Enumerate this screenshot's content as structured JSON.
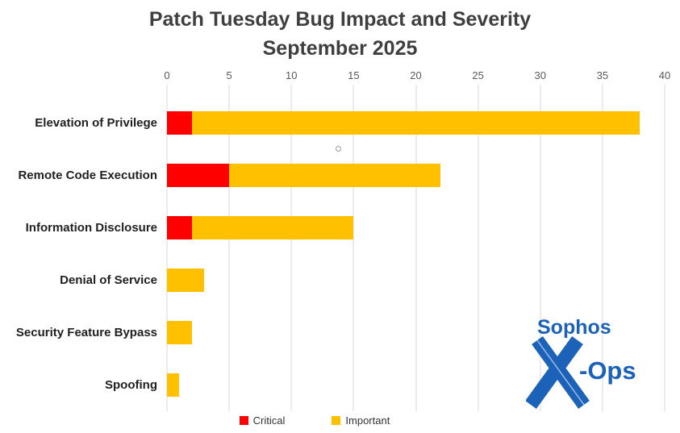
{
  "title": {
    "line1": "Patch Tuesday Bug Impact and Severity",
    "line2": "September 2025"
  },
  "chart_data": {
    "type": "bar",
    "orientation": "horizontal",
    "stacked": true,
    "title": "Patch Tuesday Bug Impact and Severity September 2025",
    "categories": [
      "Elevation of Privilege",
      "Remote Code Execution",
      "Information Disclosure",
      "Denial of Service",
      "Security Feature Bypass",
      "Spoofing"
    ],
    "series": [
      {
        "name": "Critical",
        "color": "#FF0000",
        "values": [
          2,
          5,
          2,
          0,
          0,
          0
        ]
      },
      {
        "name": "Important",
        "color": "#FFC000",
        "values": [
          36,
          17,
          13,
          3,
          2,
          1
        ]
      }
    ],
    "totals": [
      38,
      22,
      15,
      3,
      2,
      1
    ],
    "x_axis": {
      "min": 0,
      "max": 40,
      "tick_interval": 5,
      "ticks": [
        0,
        5,
        10,
        15,
        20,
        25,
        30,
        35,
        40
      ],
      "position": "top"
    },
    "grid": "vertical",
    "legend_position": "bottom"
  },
  "legend": {
    "items": [
      {
        "label": "Critical",
        "color": "#FF0000"
      },
      {
        "label": "Important",
        "color": "#FFC000"
      }
    ]
  },
  "logo": {
    "brand": "Sophos",
    "x_mark": "X",
    "suffix": "-Ops",
    "color": "#1b62b8"
  }
}
